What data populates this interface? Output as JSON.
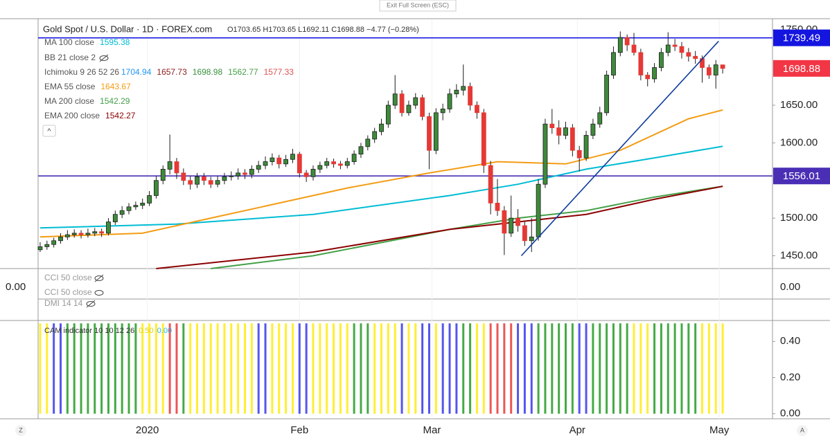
{
  "toolbar": {
    "exit_button": "Exit Full Screen (ESC)",
    "collapse": "^",
    "left_button": "Z",
    "right_button": "A"
  },
  "chart_data": {
    "type": "candlestick",
    "title": "Gold Spot / U.S. Dollar · 1D · FOREX.com",
    "ohlc_text": "O1703.65 H1703.65 L1692.11 C1698.88 −4.77 (−0.28%)",
    "up_color": "#3e8a3a",
    "down_color": "#e53935",
    "border_color": "#1b1b1b",
    "xlim": [
      -0.3,
      107.3
    ],
    "ylim": [
      1433,
      1764
    ],
    "xticks": [
      {
        "value": 15.7,
        "label": "2020"
      },
      {
        "value": 38,
        "label": "Feb"
      },
      {
        "value": 57.4,
        "label": "Mar"
      },
      {
        "value": 78.7,
        "label": "Apr"
      },
      {
        "value": 99.5,
        "label": "May"
      }
    ],
    "yticks": [
      {
        "value": 1450,
        "label": "1450.00"
      },
      {
        "value": 1500,
        "label": "1500.00"
      },
      {
        "value": 1600,
        "label": "1600.00"
      },
      {
        "value": 1650,
        "label": "1650.00"
      },
      {
        "value": 1750,
        "label": "1750.00"
      }
    ],
    "candles": [
      [
        1458,
        1468,
        1455,
        1462
      ],
      [
        1462,
        1470,
        1458,
        1465
      ],
      [
        1465,
        1474,
        1461,
        1470
      ],
      [
        1470,
        1480,
        1466,
        1475
      ],
      [
        1475,
        1484,
        1471,
        1478
      ],
      [
        1478,
        1485,
        1474,
        1480
      ],
      [
        1480,
        1484,
        1473,
        1478
      ],
      [
        1478,
        1486,
        1474,
        1480
      ],
      [
        1480,
        1487,
        1476,
        1482
      ],
      [
        1482,
        1486,
        1475,
        1480
      ],
      [
        1480,
        1500,
        1477,
        1495
      ],
      [
        1495,
        1510,
        1491,
        1505
      ],
      [
        1505,
        1516,
        1500,
        1510
      ],
      [
        1510,
        1520,
        1505,
        1515
      ],
      [
        1515,
        1522,
        1511,
        1517
      ],
      [
        1517,
        1526,
        1512,
        1520
      ],
      [
        1520,
        1536,
        1516,
        1530
      ],
      [
        1530,
        1556,
        1526,
        1550
      ],
      [
        1550,
        1570,
        1545,
        1565
      ],
      [
        1565,
        1611,
        1558,
        1575
      ],
      [
        1575,
        1580,
        1552,
        1560
      ],
      [
        1560,
        1566,
        1544,
        1550
      ],
      [
        1550,
        1556,
        1538,
        1545
      ],
      [
        1545,
        1560,
        1540,
        1555
      ],
      [
        1555,
        1560,
        1544,
        1550
      ],
      [
        1550,
        1555,
        1540,
        1545
      ],
      [
        1545,
        1556,
        1541,
        1550
      ],
      [
        1550,
        1560,
        1545,
        1555
      ],
      [
        1555,
        1562,
        1550,
        1556
      ],
      [
        1556,
        1566,
        1551,
        1560
      ],
      [
        1560,
        1565,
        1552,
        1558
      ],
      [
        1558,
        1570,
        1553,
        1565
      ],
      [
        1565,
        1576,
        1560,
        1570
      ],
      [
        1570,
        1582,
        1565,
        1575
      ],
      [
        1575,
        1586,
        1570,
        1580
      ],
      [
        1580,
        1584,
        1566,
        1572
      ],
      [
        1572,
        1584,
        1568,
        1578
      ],
      [
        1578,
        1592,
        1573,
        1585
      ],
      [
        1585,
        1588,
        1554,
        1560
      ],
      [
        1560,
        1564,
        1548,
        1555
      ],
      [
        1555,
        1570,
        1550,
        1565
      ],
      [
        1565,
        1575,
        1560,
        1570
      ],
      [
        1570,
        1580,
        1566,
        1575
      ],
      [
        1575,
        1579,
        1567,
        1572
      ],
      [
        1572,
        1576,
        1565,
        1570
      ],
      [
        1570,
        1580,
        1566,
        1575
      ],
      [
        1575,
        1590,
        1571,
        1585
      ],
      [
        1585,
        1600,
        1580,
        1595
      ],
      [
        1595,
        1610,
        1590,
        1605
      ],
      [
        1605,
        1620,
        1600,
        1615
      ],
      [
        1615,
        1632,
        1610,
        1625
      ],
      [
        1625,
        1656,
        1620,
        1650
      ],
      [
        1650,
        1690,
        1645,
        1665
      ],
      [
        1665,
        1670,
        1635,
        1640
      ],
      [
        1640,
        1656,
        1636,
        1650
      ],
      [
        1650,
        1666,
        1645,
        1660
      ],
      [
        1660,
        1664,
        1630,
        1635
      ],
      [
        1635,
        1640,
        1565,
        1590
      ],
      [
        1590,
        1646,
        1585,
        1640
      ],
      [
        1640,
        1652,
        1630,
        1645
      ],
      [
        1645,
        1672,
        1640,
        1665
      ],
      [
        1665,
        1678,
        1660,
        1670
      ],
      [
        1670,
        1704,
        1663,
        1675
      ],
      [
        1675,
        1680,
        1643,
        1650
      ],
      [
        1650,
        1655,
        1632,
        1640
      ],
      [
        1640,
        1645,
        1560,
        1570
      ],
      [
        1570,
        1576,
        1505,
        1520
      ],
      [
        1520,
        1552,
        1503,
        1510
      ],
      [
        1510,
        1516,
        1451,
        1480
      ],
      [
        1480,
        1530,
        1475,
        1500
      ],
      [
        1500,
        1512,
        1482,
        1490
      ],
      [
        1490,
        1495,
        1463,
        1470
      ],
      [
        1470,
        1500,
        1455,
        1475
      ],
      [
        1475,
        1552,
        1470,
        1545
      ],
      [
        1545,
        1632,
        1540,
        1625
      ],
      [
        1625,
        1645,
        1612,
        1620
      ],
      [
        1620,
        1630,
        1598,
        1610
      ],
      [
        1610,
        1628,
        1605,
        1620
      ],
      [
        1620,
        1625,
        1582,
        1590
      ],
      [
        1590,
        1596,
        1562,
        1580
      ],
      [
        1580,
        1616,
        1576,
        1610
      ],
      [
        1610,
        1632,
        1605,
        1625
      ],
      [
        1625,
        1648,
        1620,
        1640
      ],
      [
        1640,
        1696,
        1636,
        1690
      ],
      [
        1690,
        1728,
        1685,
        1720
      ],
      [
        1720,
        1748,
        1715,
        1740
      ],
      [
        1740,
        1744,
        1722,
        1730
      ],
      [
        1730,
        1746,
        1716,
        1720
      ],
      [
        1720,
        1725,
        1683,
        1690
      ],
      [
        1690,
        1694,
        1675,
        1685
      ],
      [
        1685,
        1706,
        1680,
        1700
      ],
      [
        1700,
        1726,
        1695,
        1720
      ],
      [
        1720,
        1747,
        1715,
        1730
      ],
      [
        1730,
        1738,
        1722,
        1728
      ],
      [
        1728,
        1734,
        1712,
        1720
      ],
      [
        1720,
        1726,
        1708,
        1715
      ],
      [
        1715,
        1722,
        1705,
        1712
      ],
      [
        1712,
        1716,
        1680,
        1700
      ],
      [
        1700,
        1704,
        1685,
        1690
      ],
      [
        1690,
        1710,
        1672,
        1703.65
      ],
      [
        1703.65,
        1703.65,
        1692.11,
        1698.88
      ]
    ],
    "lines": [
      {
        "name": "MA 100 close",
        "color": "#00bcd4",
        "x": [
          0,
          20,
          40,
          60,
          70,
          80,
          90,
          100
        ],
        "values": [
          1487,
          1492,
          1505,
          1530,
          1545,
          1565,
          1580,
          1595.38
        ]
      },
      {
        "name": "EMA 55 close",
        "color": "#f39c12",
        "x": [
          0,
          15,
          25,
          35,
          45,
          57,
          67,
          77,
          85,
          95,
          100
        ],
        "values": [
          1475,
          1480,
          1500,
          1520,
          1540,
          1560,
          1575,
          1572,
          1590,
          1632,
          1643.67
        ]
      },
      {
        "name": "MA 200 close",
        "color": "#43a047",
        "x": [
          25,
          40,
          60,
          70,
          80,
          90,
          100
        ],
        "values": [
          1433,
          1450,
          1485,
          1500,
          1510,
          1528,
          1542.29
        ]
      },
      {
        "name": "EMA 200 close",
        "color": "#8b0000",
        "x": [
          17,
          40,
          60,
          70,
          80,
          90,
          100
        ],
        "values": [
          1433,
          1455,
          1485,
          1495,
          1505,
          1525,
          1542.27
        ]
      }
    ],
    "hidden_indicator": "BB 21 close 2",
    "ichimoku": {
      "name": "Ichimoku 9 26 52 26",
      "values": [
        1704.94,
        1657.73,
        1698.98,
        1562.77,
        1577.33
      ],
      "colors": [
        "#2196f3",
        "#8b1a1a",
        "#388e3c",
        "#43a047",
        "#e05252"
      ]
    },
    "hlines": [
      {
        "value": 1739.49,
        "color": "#1515e0"
      },
      {
        "value": 1556.01,
        "color": "#4a2fb5"
      }
    ],
    "trendline": {
      "x": [
        70.5,
        99.4
      ],
      "y": [
        1450,
        1735
      ],
      "color": "#0d3b9e"
    },
    "last_color": "#f23645",
    "cci": {
      "labels": [
        "CCI 50 close",
        "CCI 50 close"
      ],
      "ytick": {
        "value": 0,
        "label": "0.00"
      }
    },
    "dmi": {
      "label": "DMI 14 14"
    },
    "cam": {
      "name": "CAM indicator 10 10 12 26",
      "legend_values": [
        {
          "value": 0.5,
          "label": "0.50"
        },
        {
          "value": 0,
          "label": "0.00"
        }
      ],
      "legend_colors": [
        "#e6d200",
        "#29b6f6"
      ],
      "value": 0.5,
      "ylim": [
        -0.028,
        0.516
      ],
      "yticks": [
        {
          "value": 0,
          "label": "0.00"
        },
        {
          "value": 0.2,
          "label": "0.20"
        },
        {
          "value": 0.4,
          "label": "0.40"
        }
      ],
      "colors": [
        "#fe3",
        "#fe3",
        "#55e",
        "#55e",
        "#4a4",
        "#4a4",
        "#4a4",
        "#4a4",
        "#4a4",
        "#4a4",
        "#4a4",
        "#4a4",
        "#4a4",
        "#4a4",
        "#4a4",
        "#fe3",
        "#fe3",
        "#fe3",
        "#fe3",
        "#e55",
        "#e55",
        "#4a4",
        "#fe3",
        "#fe3",
        "#fe3",
        "#fe3",
        "#fe3",
        "#fe3",
        "#fe3",
        "#fe3",
        "#fe3",
        "#fe3",
        "#55e",
        "#55e",
        "#fe3",
        "#fe3",
        "#fe3",
        "#fe3",
        "#55e",
        "#55e",
        "#fe3",
        "#fe3",
        "#fe3",
        "#fe3",
        "#fe3",
        "#fe3",
        "#4a4",
        "#4a4",
        "#4a4",
        "#fe3",
        "#fe3",
        "#fe3",
        "#fe3",
        "#55e",
        "#fe3",
        "#fe3",
        "#55e",
        "#55e",
        "#fe3",
        "#55e",
        "#55e",
        "#55e",
        "#4a4",
        "#4a4",
        "#fe3",
        "#fe3",
        "#e55",
        "#e55",
        "#e55",
        "#e55",
        "#55e",
        "#55e",
        "#55e",
        "#4a4",
        "#4a4",
        "#4a4",
        "#4a4",
        "#4a4",
        "#4a4",
        "#55e",
        "#55e",
        "#4a4",
        "#4a4",
        "#4a4",
        "#4a4",
        "#4a4",
        "#4a4",
        "#fe3",
        "#fe3",
        "#fe3",
        "#4a4",
        "#4a4",
        "#4a4",
        "#4a4",
        "#4a4",
        "#4a4",
        "#4a4",
        "#fe3",
        "#fe3",
        "#fe3",
        "#fe3"
      ]
    }
  }
}
